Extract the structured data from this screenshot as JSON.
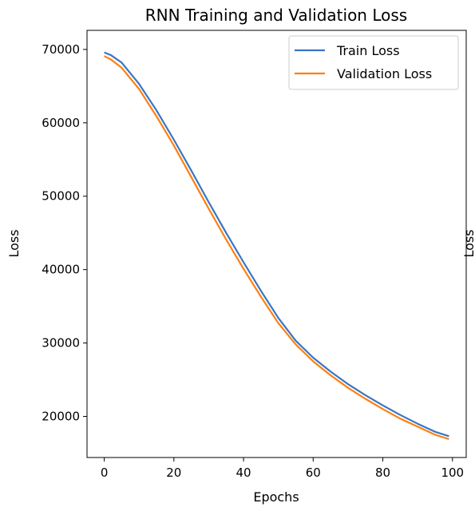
{
  "chart_data": {
    "type": "line",
    "title": "RNN Training and Validation Loss",
    "xlabel": "Epochs",
    "ylabel": "Loss",
    "ylabel_right": "Loss",
    "xlim": [
      -4.95,
      103.95
    ],
    "ylim": [
      14400,
      72600
    ],
    "x_ticks": [
      0,
      20,
      40,
      60,
      80,
      100
    ],
    "x_tick_labels": [
      "0",
      "20",
      "40",
      "60",
      "80",
      "100"
    ],
    "y_ticks": [
      20000,
      30000,
      40000,
      50000,
      60000,
      70000
    ],
    "y_tick_labels": [
      "20000",
      "30000",
      "40000",
      "50000",
      "60000",
      "70000"
    ],
    "grid": false,
    "legend_position": "top-right",
    "x": [
      0,
      2,
      5,
      10,
      15,
      20,
      25,
      30,
      35,
      40,
      45,
      50,
      55,
      60,
      65,
      70,
      75,
      80,
      85,
      90,
      95,
      99
    ],
    "series": [
      {
        "name": "Train Loss",
        "color": "#3a75c4",
        "values": [
          69600,
          69200,
          68200,
          65300,
          61700,
          57700,
          53500,
          49200,
          45000,
          41000,
          37100,
          33400,
          30300,
          28000,
          26100,
          24400,
          22900,
          21500,
          20200,
          19000,
          17900,
          17300
        ]
      },
      {
        "name": "Validation Loss",
        "color": "#ff7f0e",
        "values": [
          69100,
          68600,
          67500,
          64600,
          60900,
          56900,
          52600,
          48300,
          44100,
          40100,
          36300,
          32700,
          29800,
          27500,
          25600,
          23900,
          22400,
          21000,
          19700,
          18600,
          17500,
          16900
        ]
      }
    ]
  }
}
